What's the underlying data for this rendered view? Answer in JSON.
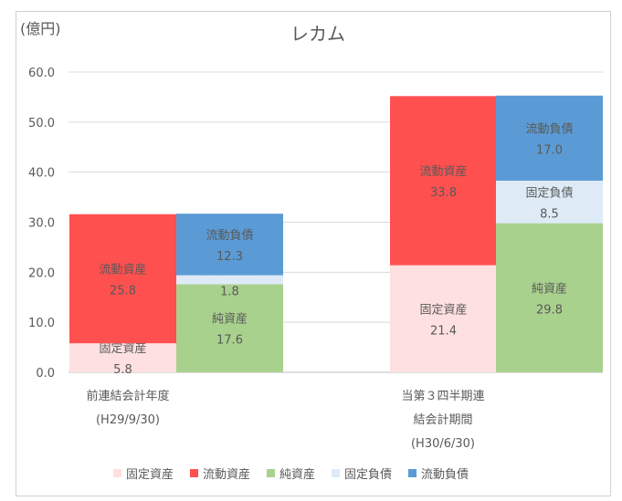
{
  "chart_data": {
    "type": "stacked-bar",
    "title": "レカム",
    "ylabel": "(億円)",
    "ylim": [
      0,
      60
    ],
    "yticks": [
      "0.0",
      "10.0",
      "20.0",
      "30.0",
      "40.0",
      "50.0",
      "60.0"
    ],
    "grid": true,
    "legend_position": "bottom",
    "categories": [
      {
        "lines": [
          "前連結会計年度",
          "(H29/9/30)"
        ]
      },
      {
        "lines": [
          "当第３四半期連",
          "結会計期間",
          "(H30/6/30)"
        ]
      }
    ],
    "series": [
      {
        "name": "固定資産",
        "stack": "assets",
        "color": "#FFE0E0",
        "values": [
          5.8,
          21.4
        ]
      },
      {
        "name": "流動資産",
        "stack": "assets",
        "color": "#FF5050",
        "values": [
          25.8,
          33.8
        ]
      },
      {
        "name": "純資産",
        "stack": "liabilities",
        "color": "#A9D18E",
        "values": [
          17.6,
          29.8
        ]
      },
      {
        "name": "固定負債",
        "stack": "liabilities",
        "color": "#DEEBF7",
        "values": [
          1.8,
          8.5
        ]
      },
      {
        "name": "流動負債",
        "stack": "liabilities",
        "color": "#5B9BD5",
        "values": [
          12.3,
          17.0
        ]
      }
    ]
  }
}
